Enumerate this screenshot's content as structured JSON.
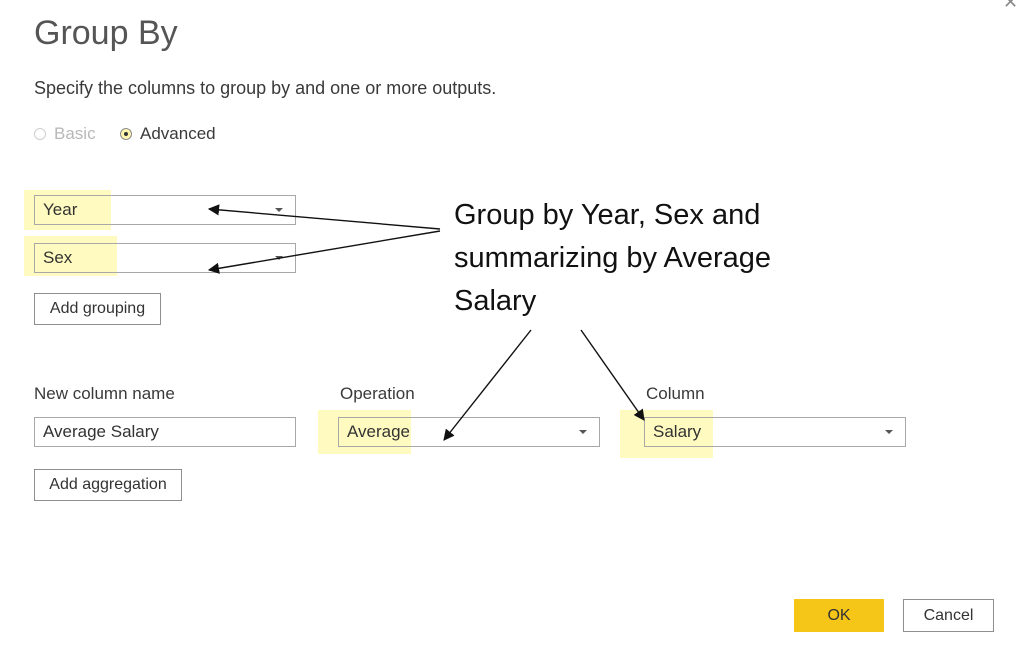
{
  "dialog": {
    "title": "Group By",
    "subtitle": "Specify the columns to group by and one or more outputs."
  },
  "mode": {
    "basic_label": "Basic",
    "advanced_label": "Advanced",
    "selected": "Advanced"
  },
  "grouping": {
    "fields": [
      {
        "value": "Year"
      },
      {
        "value": "Sex"
      }
    ],
    "add_grouping_label": "Add grouping"
  },
  "aggregation": {
    "new_column_name_label": "New column name",
    "operation_label": "Operation",
    "column_label": "Column",
    "new_column_name_value": "Average Salary",
    "operation_value": "Average",
    "column_value": "Salary",
    "add_aggregation_label": "Add aggregation"
  },
  "footer": {
    "ok_label": "OK",
    "cancel_label": "Cancel"
  },
  "annotation": {
    "text": "Group by Year, Sex and summarizing by Average Salary"
  },
  "colors": {
    "highlight": "#fffbc0",
    "ok_button": "#f5c518",
    "border": "#a8a8a8"
  },
  "icons": {
    "close": "close-icon",
    "dropdown": "chevron-down-icon"
  }
}
